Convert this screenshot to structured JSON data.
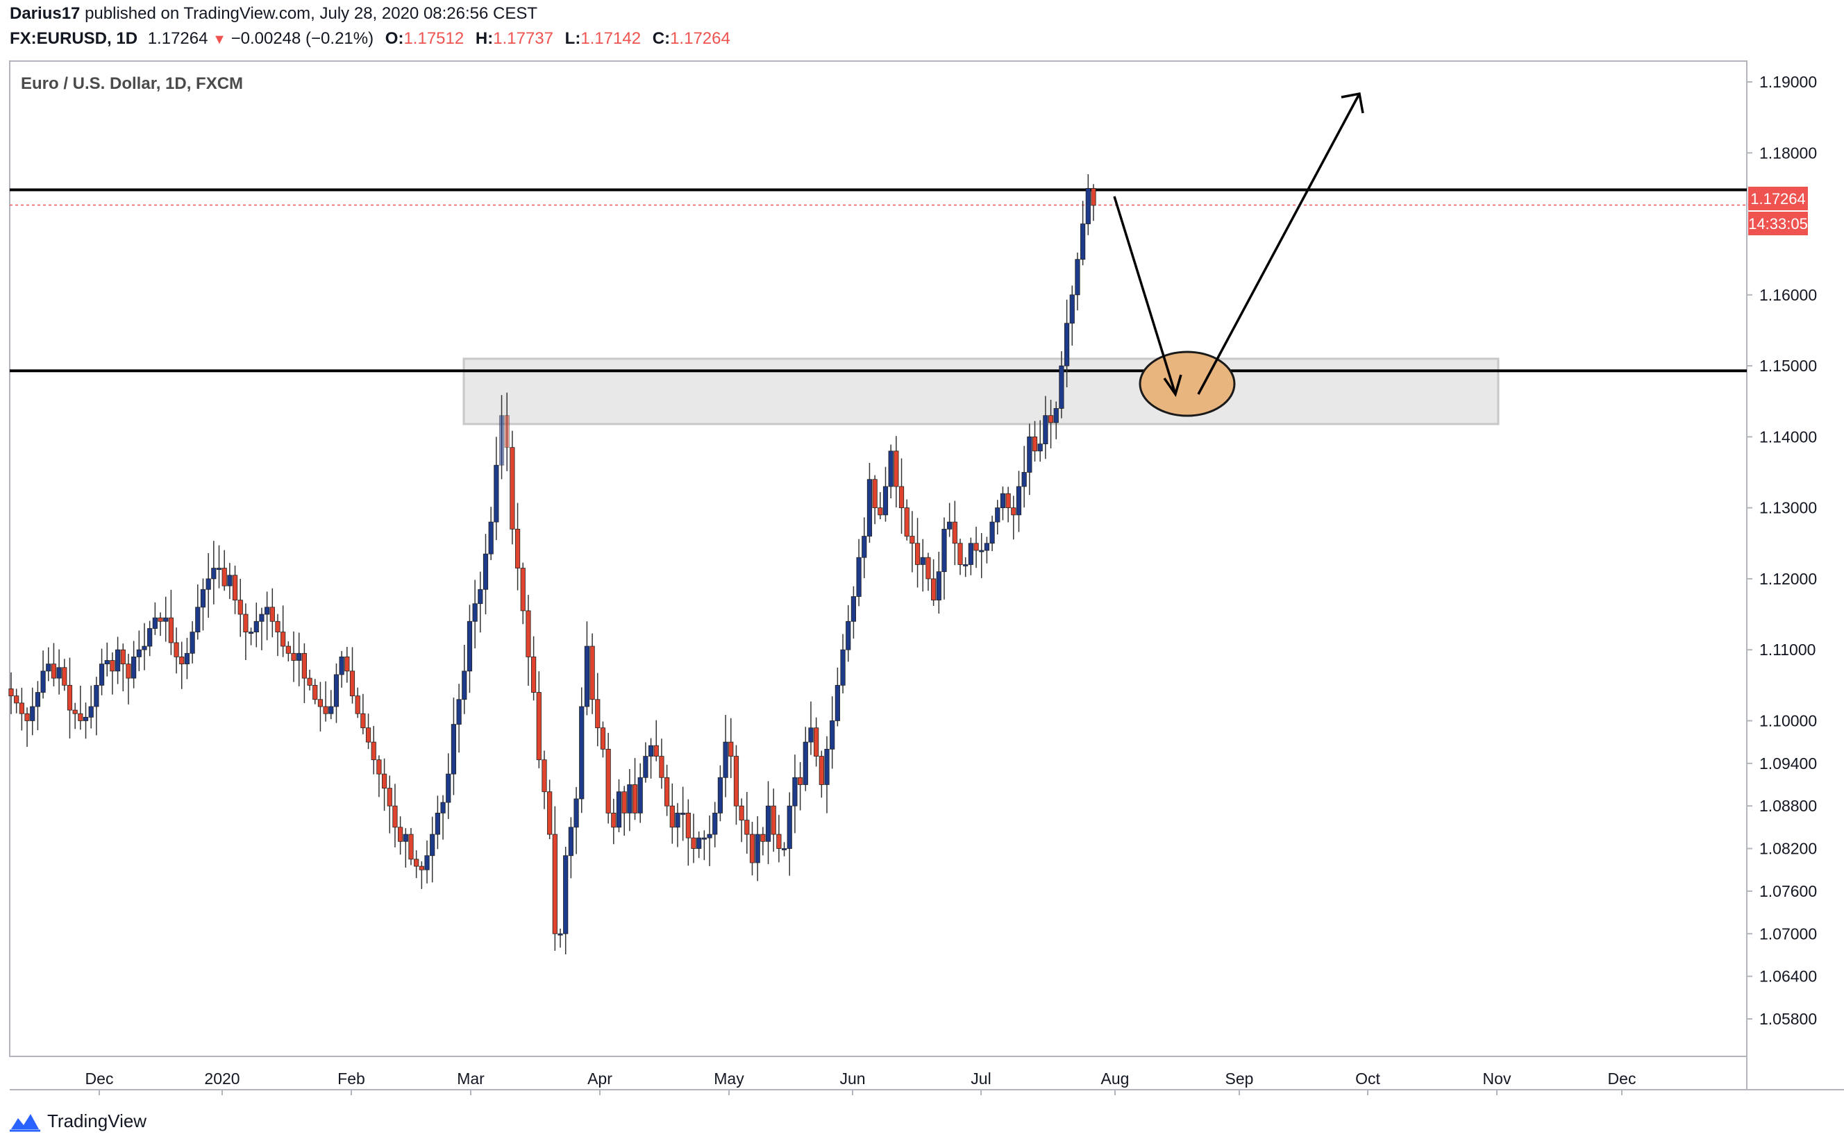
{
  "header": {
    "author": "Darius17",
    "published_text": "published on TradingView.com, July 28, 2020 08:26:56 CEST",
    "symbol": "FX:EURUSD, 1D",
    "last": "1.17264",
    "change": "−0.00248 (−0.21%)",
    "open_label": "O:",
    "open": "1.17512",
    "high_label": "H:",
    "high": "1.17737",
    "low_label": "L:",
    "low": "1.17142",
    "close_label": "C:",
    "close": "1.17264"
  },
  "chart_title": "Euro / U.S. Dollar, 1D, FXCM",
  "price_badge": "1.17264",
  "countdown_badge": "14:33:05",
  "footer": {
    "brand": "TradingView"
  },
  "colors": {
    "up": "#1e3a8a",
    "down": "#e0442f",
    "zone_fill": "#e8e8e8",
    "ellipse": "#e9b57f",
    "badge": "#ef5350"
  },
  "chart_data": {
    "type": "candlestick",
    "title": "Euro / U.S. Dollar, 1D, FXCM",
    "ylim": [
      1.052,
      1.194
    ],
    "y_ticks": [
      "1.19000",
      "1.18000",
      "1.16000",
      "1.15000",
      "1.14000",
      "1.13000",
      "1.12000",
      "1.11000",
      "1.10000",
      "1.09400",
      "1.08800",
      "1.08200",
      "1.07600",
      "1.07000",
      "1.06400",
      "1.05800"
    ],
    "x_ticks": [
      "Dec",
      "2020",
      "Feb",
      "Mar",
      "Apr",
      "May",
      "Jun",
      "Jul",
      "Aug",
      "Sep",
      "Oct",
      "Nov",
      "Dec"
    ],
    "closes": [
      1.1035,
      1.1025,
      1.101,
      1.1,
      1.102,
      1.104,
      1.107,
      1.108,
      1.106,
      1.1075,
      1.105,
      1.1015,
      1.101,
      1.1,
      1.1005,
      1.102,
      1.105,
      1.108,
      1.1085,
      1.107,
      1.11,
      1.108,
      1.106,
      1.109,
      1.11,
      1.1105,
      1.113,
      1.1145,
      1.114,
      1.1145,
      1.111,
      1.109,
      1.108,
      1.1095,
      1.1125,
      1.116,
      1.1185,
      1.12,
      1.1215,
      1.1215,
      1.119,
      1.1205,
      1.117,
      1.115,
      1.1125,
      1.1125,
      1.114,
      1.115,
      1.116,
      1.114,
      1.1125,
      1.1105,
      1.1095,
      1.1085,
      1.1095,
      1.106,
      1.105,
      1.103,
      1.102,
      1.101,
      1.102,
      1.1065,
      1.109,
      1.107,
      1.1035,
      1.101,
      1.099,
      1.097,
      1.0945,
      1.0925,
      1.0905,
      1.088,
      1.085,
      1.083,
      1.084,
      1.0805,
      1.0795,
      1.079,
      1.081,
      1.084,
      1.087,
      1.0885,
      1.0925,
      1.0995,
      1.103,
      1.107,
      1.114,
      1.1165,
      1.1185,
      1.1235,
      1.128,
      1.136,
      1.143,
      1.1385,
      1.127,
      1.1215,
      1.1155,
      1.109,
      1.104,
      1.0945,
      1.09,
      1.084,
      1.07,
      1.07,
      1.081,
      1.085,
      1.089,
      1.102,
      1.1105,
      1.103,
      1.099,
      1.096,
      1.087,
      1.085,
      1.09,
      1.087,
      1.091,
      1.087,
      1.092,
      1.095,
      1.0965,
      1.095,
      1.092,
      1.088,
      1.085,
      1.087,
      1.087,
      1.0835,
      1.082,
      1.0835,
      1.0835,
      1.084,
      1.087,
      1.092,
      1.097,
      1.095,
      1.088,
      1.086,
      1.084,
      1.08,
      1.084,
      1.083,
      1.088,
      1.084,
      1.082,
      1.082,
      1.088,
      1.092,
      1.091,
      1.097,
      1.099,
      1.095,
      1.091,
      1.096,
      1.1,
      1.105,
      1.11,
      1.114,
      1.1175,
      1.123,
      1.126,
      1.134,
      1.13,
      1.129,
      1.133,
      1.138,
      1.133,
      1.13,
      1.126,
      1.125,
      1.122,
      1.123,
      1.12,
      1.117,
      1.121,
      1.127,
      1.128,
      1.125,
      1.122,
      1.122,
      1.125,
      1.124,
      1.124,
      1.125,
      1.128,
      1.13,
      1.132,
      1.13,
      1.129,
      1.133,
      1.135,
      1.14,
      1.138,
      1.139,
      1.143,
      1.142,
      1.144,
      1.15,
      1.156,
      1.16,
      1.165,
      1.17,
      1.175,
      1.1726
    ],
    "annotations": {
      "horizontal_lines": [
        1.1748,
        1.1493
      ],
      "last_price_line": 1.17264,
      "zone": [
        1.1418,
        1.151
      ],
      "arrows": "down then up"
    }
  }
}
